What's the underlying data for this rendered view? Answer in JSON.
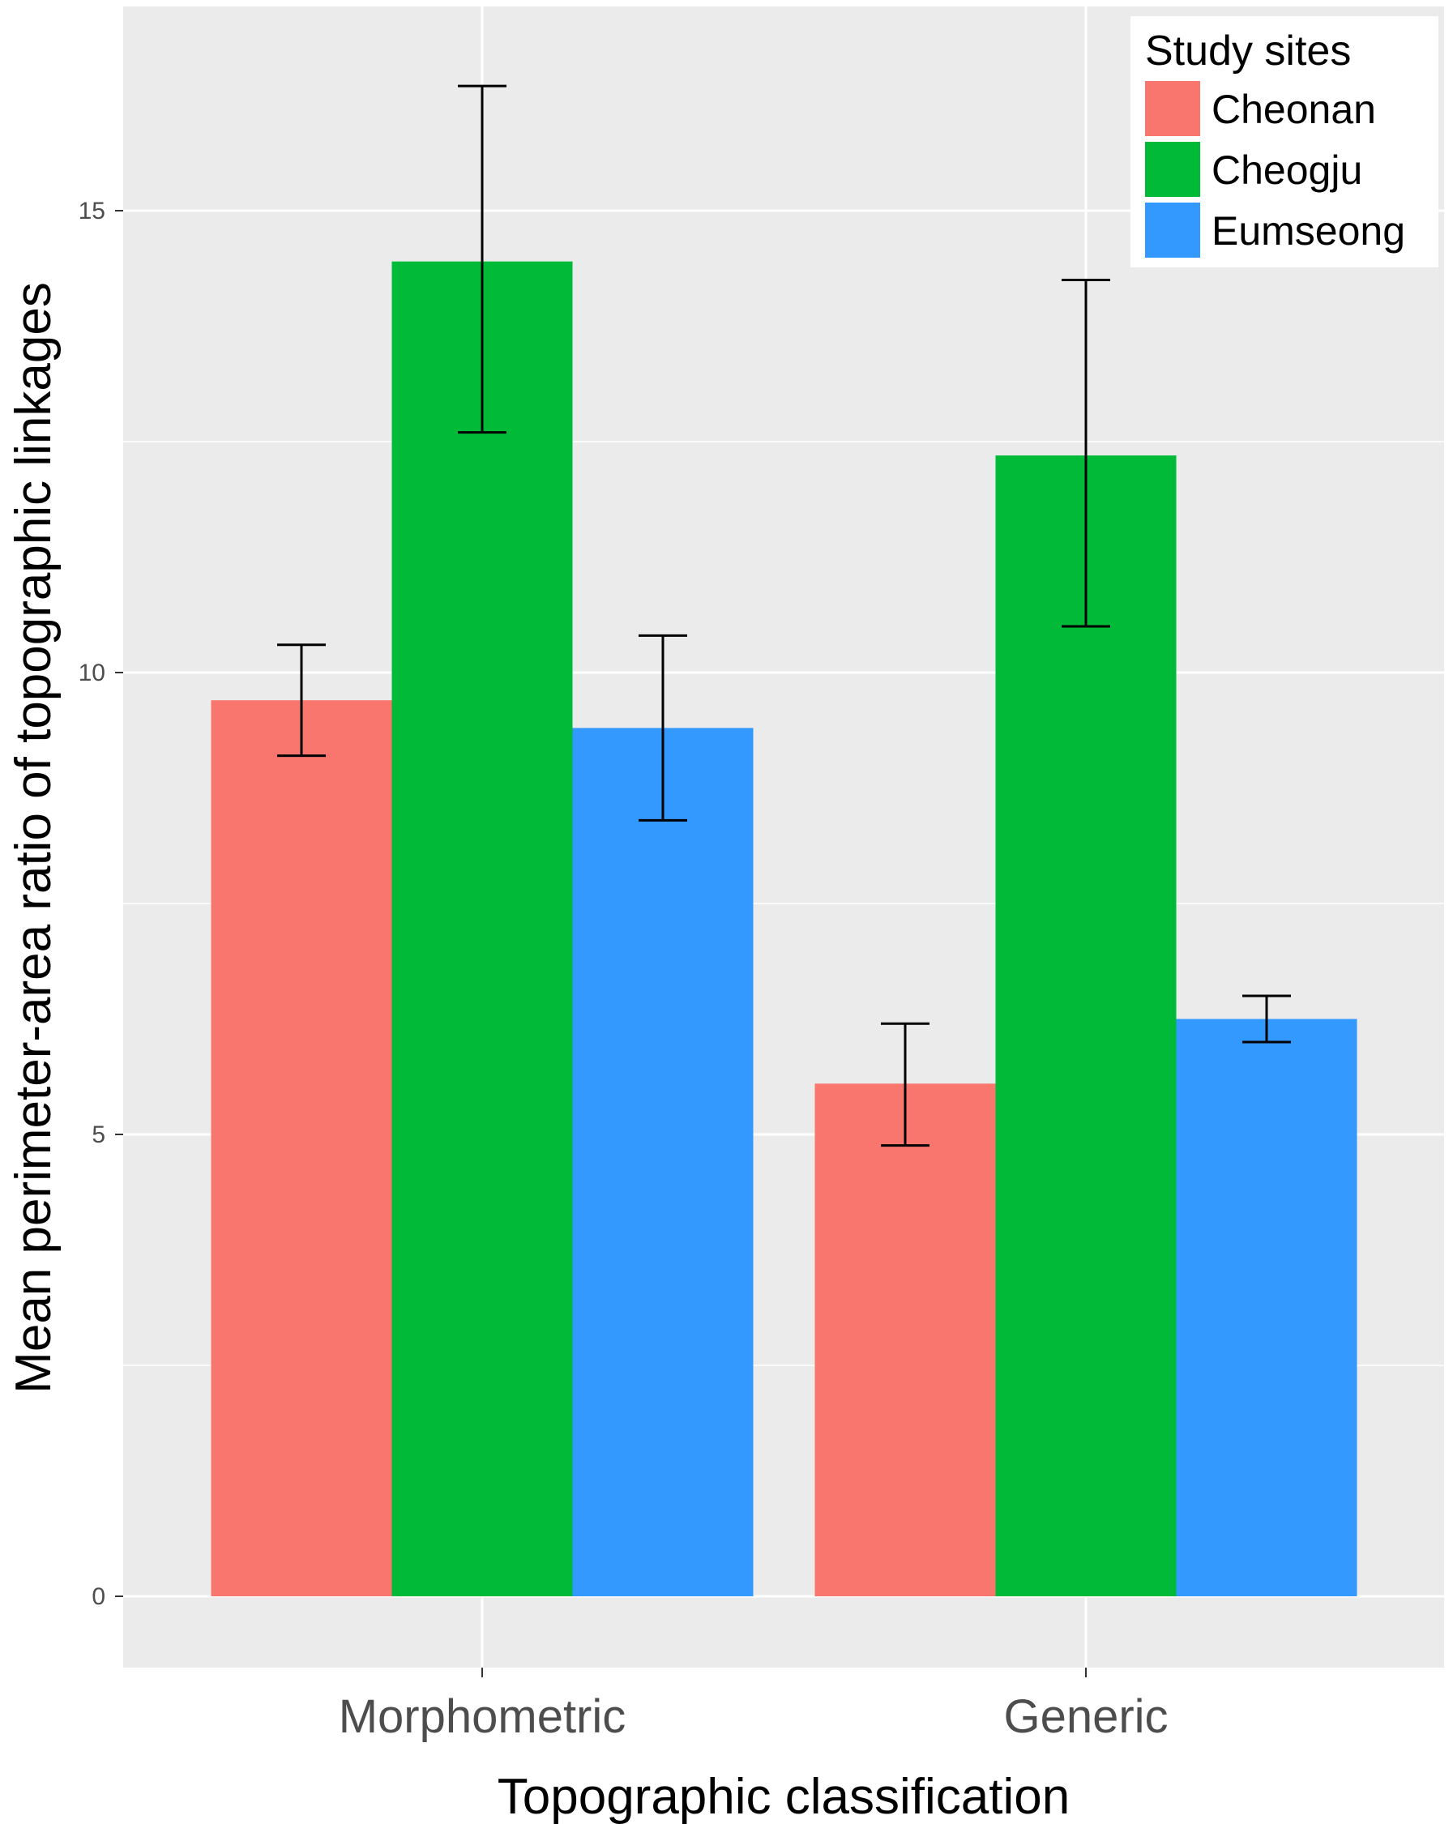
{
  "chart_data": {
    "type": "bar",
    "title": "",
    "xlabel": "Topographic classification",
    "ylabel": "Mean perimeter-area ratio of topographic linkages",
    "categories": [
      "Morphometric",
      "Generic"
    ],
    "ylim": [
      -0.8,
      17.2
    ],
    "yticks": [
      0,
      5,
      10,
      15
    ],
    "grid": true,
    "legend": {
      "title": "Study sites",
      "position": "top-right"
    },
    "series": [
      {
        "name": "Cheonan",
        "color": "#F8766D",
        "values": [
          9.7,
          5.55
        ],
        "err_low": [
          9.1,
          4.88
        ],
        "err_high": [
          10.3,
          6.2
        ]
      },
      {
        "name": "Cheogju",
        "color": "#00BA38",
        "values": [
          14.45,
          12.35
        ],
        "err_low": [
          12.6,
          10.5
        ],
        "err_high": [
          16.35,
          14.25
        ]
      },
      {
        "name": "Eumseong",
        "color": "#3399FF",
        "values": [
          9.4,
          6.25
        ],
        "err_low": [
          8.4,
          6.0
        ],
        "err_high": [
          10.4,
          6.5
        ]
      }
    ]
  }
}
